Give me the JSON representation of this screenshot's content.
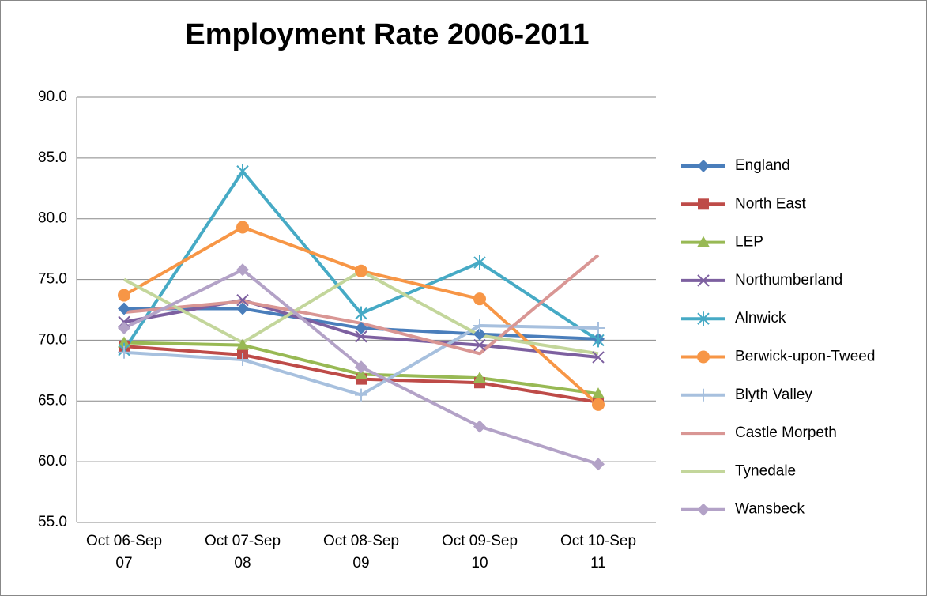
{
  "chart_data": {
    "type": "line",
    "title": "Employment Rate 2006-2011",
    "categories": [
      "Oct 06-Sep 07",
      "Oct 07-Sep 08",
      "Oct 08-Sep 09",
      "Oct 09-Sep 10",
      "Oct 10-Sep 11"
    ],
    "ylim": [
      55,
      90
    ],
    "yticks": [
      {
        "value": 55,
        "label": "55.0"
      },
      {
        "value": 60,
        "label": "60.0"
      },
      {
        "value": 65,
        "label": "65.0"
      },
      {
        "value": 70,
        "label": "70.0"
      },
      {
        "value": 75,
        "label": "75.0"
      },
      {
        "value": 80,
        "label": "80.0"
      },
      {
        "value": 85,
        "label": "85.0"
      },
      {
        "value": 90,
        "label": "90.0"
      }
    ],
    "grid": true,
    "legend": "right",
    "series": [
      {
        "name": "England",
        "color": "#4a7ebb",
        "marker": "diamond",
        "values": [
          72.6,
          72.6,
          71.0,
          70.5,
          70.1
        ]
      },
      {
        "name": "North East",
        "color": "#be4b48",
        "marker": "square",
        "values": [
          69.5,
          68.8,
          66.8,
          66.5,
          64.9
        ]
      },
      {
        "name": "LEP",
        "color": "#98b954",
        "marker": "triangle",
        "values": [
          69.8,
          69.6,
          67.2,
          66.9,
          65.6
        ]
      },
      {
        "name": "Northumberland",
        "color": "#7d60a0",
        "marker": "x",
        "values": [
          71.5,
          73.3,
          70.3,
          69.6,
          68.6
        ]
      },
      {
        "name": "Alnwick",
        "color": "#46aac5",
        "marker": "star",
        "values": [
          69.2,
          83.9,
          72.2,
          76.4,
          70.0
        ]
      },
      {
        "name": "Berwick-upon-Tweed",
        "color": "#f79646",
        "marker": "circle",
        "values": [
          73.7,
          79.3,
          75.7,
          73.4,
          64.7
        ]
      },
      {
        "name": "Blyth Valley",
        "color": "#a7c0de",
        "marker": "plus",
        "values": [
          69.0,
          68.4,
          65.5,
          71.2,
          71.0
        ]
      },
      {
        "name": "Castle Morpeth",
        "color": "#d99694",
        "marker": "none",
        "values": [
          72.3,
          73.2,
          71.4,
          68.9,
          77.0
        ]
      },
      {
        "name": "Tynedale",
        "color": "#c3d69b",
        "marker": "none",
        "values": [
          75.0,
          69.8,
          75.7,
          70.4,
          68.9
        ]
      },
      {
        "name": "Wansbeck",
        "color": "#b3a2c7",
        "marker": "diamond",
        "values": [
          71.0,
          75.8,
          67.8,
          62.9,
          59.8
        ]
      }
    ]
  }
}
